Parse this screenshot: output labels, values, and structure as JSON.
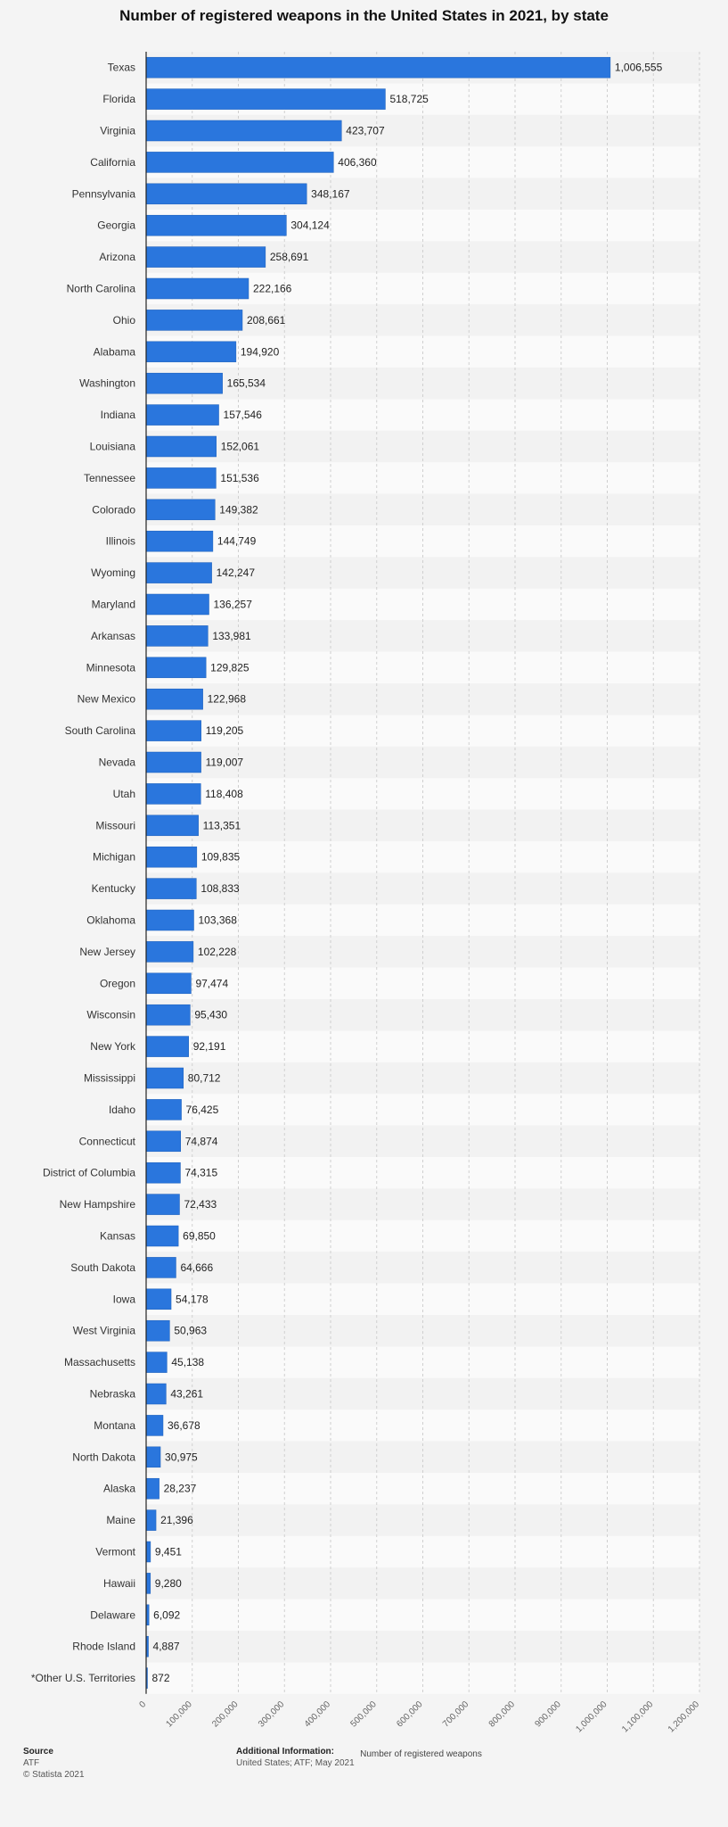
{
  "chart_data": {
    "type": "bar",
    "orientation": "horizontal",
    "title": "Number of registered weapons in the United States in 2021, by state",
    "xlabel": "Number of registered weapons",
    "ylabel": "",
    "xlim": [
      0,
      1200000
    ],
    "xticks": [
      0,
      100000,
      200000,
      300000,
      400000,
      500000,
      600000,
      700000,
      800000,
      900000,
      1000000,
      1100000,
      1200000
    ],
    "xtick_labels": [
      "0",
      "100,000",
      "200,000",
      "300,000",
      "400,000",
      "500,000",
      "600,000",
      "700,000",
      "800,000",
      "900,000",
      "1,000,000",
      "1,100,000",
      "1,200,000"
    ],
    "grid": true,
    "bar_color": "#2a76dd",
    "categories": [
      "Texas",
      "Florida",
      "Virginia",
      "California",
      "Pennsylvania",
      "Georgia",
      "Arizona",
      "North Carolina",
      "Ohio",
      "Alabama",
      "Washington",
      "Indiana",
      "Louisiana",
      "Tennessee",
      "Colorado",
      "Illinois",
      "Wyoming",
      "Maryland",
      "Arkansas",
      "Minnesota",
      "New Mexico",
      "South Carolina",
      "Nevada",
      "Utah",
      "Missouri",
      "Michigan",
      "Kentucky",
      "Oklahoma",
      "New Jersey",
      "Oregon",
      "Wisconsin",
      "New York",
      "Mississippi",
      "Idaho",
      "Connecticut",
      "District of Columbia",
      "New Hampshire",
      "Kansas",
      "South Dakota",
      "Iowa",
      "West Virginia",
      "Massachusetts",
      "Nebraska",
      "Montana",
      "North Dakota",
      "Alaska",
      "Maine",
      "Vermont",
      "Hawaii",
      "Delaware",
      "Rhode Island",
      "*Other U.S. Territories"
    ],
    "values": [
      1006555,
      518725,
      423707,
      406360,
      348167,
      304124,
      258691,
      222166,
      208661,
      194920,
      165534,
      157546,
      152061,
      151536,
      149382,
      144749,
      142247,
      136257,
      133981,
      129825,
      122968,
      119205,
      119007,
      118408,
      113351,
      109835,
      108833,
      103368,
      102228,
      97474,
      95430,
      92191,
      80712,
      76425,
      74874,
      74315,
      72433,
      69850,
      64666,
      54178,
      50963,
      45138,
      43261,
      36678,
      30975,
      28237,
      21396,
      9451,
      9280,
      6092,
      4887,
      872
    ],
    "value_labels": [
      "1,006,555",
      "518,725",
      "423,707",
      "406,360",
      "348,167",
      "304,124",
      "258,691",
      "222,166",
      "208,661",
      "194,920",
      "165,534",
      "157,546",
      "152,061",
      "151,536",
      "149,382",
      "144,749",
      "142,247",
      "136,257",
      "133,981",
      "129,825",
      "122,968",
      "119,205",
      "119,007",
      "118,408",
      "113,351",
      "109,835",
      "108,833",
      "103,368",
      "102,228",
      "97,474",
      "95,430",
      "92,191",
      "80,712",
      "76,425",
      "74,874",
      "74,315",
      "72,433",
      "69,850",
      "64,666",
      "54,178",
      "50,963",
      "45,138",
      "43,261",
      "36,678",
      "30,975",
      "28,237",
      "21,396",
      "9,451",
      "9,280",
      "6,092",
      "4,887",
      "872"
    ]
  },
  "footer": {
    "source_heading": "Source",
    "source_name": "ATF",
    "copyright": "© Statista 2021",
    "info_heading": "Additional Information:",
    "info_text": "United States; ATF; May 2021"
  }
}
